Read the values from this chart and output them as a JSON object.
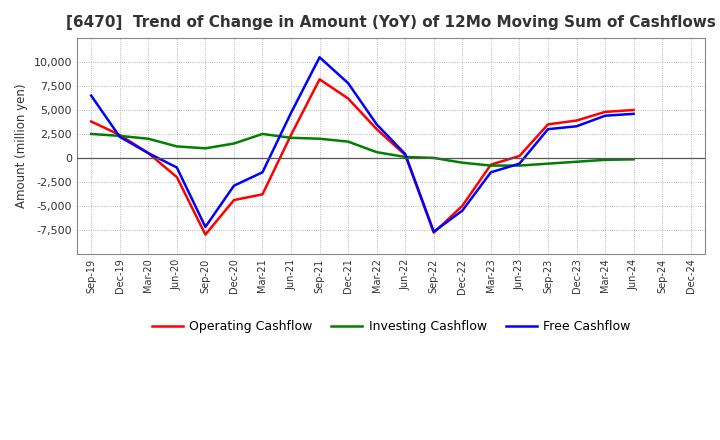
{
  "title": "[6470]  Trend of Change in Amount (YoY) of 12Mo Moving Sum of Cashflows",
  "ylabel": "Amount (million yen)",
  "x_labels": [
    "Sep-19",
    "Dec-19",
    "Mar-20",
    "Jun-20",
    "Sep-20",
    "Dec-20",
    "Mar-21",
    "Jun-21",
    "Sep-21",
    "Dec-21",
    "Mar-22",
    "Jun-22",
    "Sep-22",
    "Dec-22",
    "Mar-23",
    "Jun-23",
    "Sep-23",
    "Dec-23",
    "Mar-24",
    "Jun-24",
    "Sep-24",
    "Dec-24"
  ],
  "operating": [
    3800,
    2400,
    500,
    -2000,
    -8000,
    -4400,
    -3800,
    2400,
    8200,
    6200,
    3000,
    300,
    -7800,
    -5000,
    -700,
    200,
    3500,
    3900,
    4800,
    5000,
    null,
    null
  ],
  "investing": [
    2500,
    2300,
    2000,
    1200,
    1000,
    1500,
    2500,
    2100,
    2000,
    1700,
    600,
    100,
    0,
    -500,
    -800,
    -800,
    -600,
    -400,
    -200,
    -150,
    null,
    null
  ],
  "free": [
    6500,
    2200,
    500,
    -1000,
    -7200,
    -2900,
    -1500,
    4700,
    10500,
    7800,
    3500,
    400,
    -7700,
    -5500,
    -1500,
    -600,
    3000,
    3300,
    4400,
    4600,
    null,
    null
  ],
  "ylim": [
    -10000,
    12500
  ],
  "yticks": [
    -7500,
    -5000,
    -2500,
    0,
    2500,
    5000,
    7500,
    10000
  ],
  "operating_color": "#ff0000",
  "investing_color": "#008000",
  "free_color": "#0000ff",
  "bg_color": "#ffffff",
  "grid_color": "#999999",
  "title_color": "#333333",
  "title_fontsize": 11,
  "legend_labels": [
    "Operating Cashflow",
    "Investing Cashflow",
    "Free Cashflow"
  ]
}
